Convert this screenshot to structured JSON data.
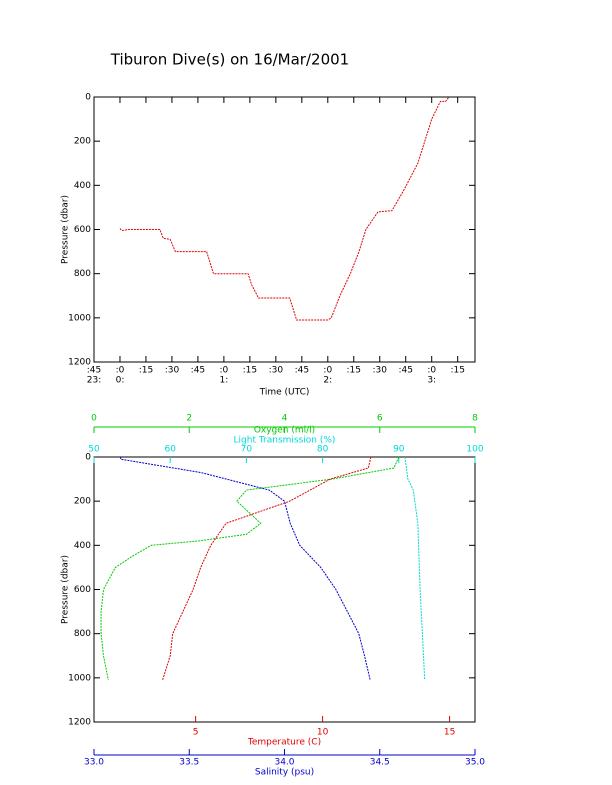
{
  "chart_data": [
    {
      "type": "line",
      "title": "Tiburon Dive(s) on 16/Mar/2001",
      "xlabel": "Time (UTC)",
      "ylabel": "Pressure (dbar)",
      "y_inverted": true,
      "xlim": [
        -15,
        205
      ],
      "ylim": [
        0,
        1200
      ],
      "xticks": [
        {
          "value": -15,
          "label": ":45"
        },
        {
          "value": 0,
          "label": ":0"
        },
        {
          "value": 15,
          "label": ":15"
        },
        {
          "value": 30,
          "label": ":30"
        },
        {
          "value": 45,
          "label": ":45"
        },
        {
          "value": 60,
          "label": ":0"
        },
        {
          "value": 75,
          "label": ":15"
        },
        {
          "value": 90,
          "label": ":30"
        },
        {
          "value": 105,
          "label": ":45"
        },
        {
          "value": 120,
          "label": ":0"
        },
        {
          "value": 135,
          "label": ":15"
        },
        {
          "value": 150,
          "label": ":30"
        },
        {
          "value": 165,
          "label": ":45"
        },
        {
          "value": 180,
          "label": ":0"
        },
        {
          "value": 195,
          "label": ":15"
        }
      ],
      "hour_ticks": [
        {
          "value": -15,
          "label": "23:"
        },
        {
          "value": 0,
          "label": "0:"
        },
        {
          "value": 60,
          "label": "1:"
        },
        {
          "value": 120,
          "label": "2:"
        },
        {
          "value": 180,
          "label": "3:"
        }
      ],
      "yticks": [
        0,
        200,
        400,
        600,
        800,
        1000,
        1200
      ],
      "series": [
        {
          "color": "#e00000",
          "x": [
            0,
            1,
            5,
            23,
            25,
            29,
            32,
            50,
            54,
            74,
            76,
            80,
            98,
            102,
            120,
            122,
            127,
            133,
            138,
            142,
            149,
            157,
            164,
            172,
            176,
            180,
            185,
            188,
            190
          ],
          "y": [
            595,
            605,
            600,
            600,
            640,
            645,
            700,
            700,
            800,
            800,
            850,
            910,
            910,
            1010,
            1010,
            1000,
            900,
            800,
            700,
            600,
            520,
            515,
            420,
            300,
            200,
            100,
            20,
            20,
            0
          ]
        }
      ]
    },
    {
      "type": "profile",
      "ylabel": "Pressure (dbar)",
      "y_inverted": true,
      "ylim": [
        0,
        1200
      ],
      "yticks": [
        0,
        200,
        400,
        600,
        800,
        1000,
        1200
      ],
      "x_axes": [
        {
          "label": "Oxygen (ml/l)",
          "color": "#00cc00",
          "side": "top",
          "xlim": [
            0,
            8
          ],
          "xticks": [
            0,
            2,
            4,
            6,
            8
          ]
        },
        {
          "label": "Light Transmission (%)",
          "color": "#00d8d8",
          "side": "top",
          "xlim": [
            50,
            100
          ],
          "xticks": [
            50,
            60,
            70,
            80,
            90,
            100
          ]
        },
        {
          "label": "Temperature (C)",
          "color": "#e00000",
          "side": "bottom",
          "xlim": [
            1,
            16
          ],
          "xticks": [
            5,
            10,
            15
          ]
        },
        {
          "label": "Salinity (psu)",
          "color": "#0000cc",
          "side": "bottom",
          "xlim": [
            33,
            35
          ],
          "xticks": [
            {
              "value": 33,
              "label": "33.0"
            },
            {
              "value": 33.5,
              "label": "33.5"
            },
            {
              "value": 34,
              "label": "34.0"
            },
            {
              "value": 34.5,
              "label": "34.5"
            },
            {
              "value": 35,
              "label": "35.0"
            }
          ]
        }
      ],
      "series": [
        {
          "axis": 0,
          "color": "#00cc00",
          "x": [
            6.4,
            6.3,
            5.0,
            3.2,
            3.0,
            3.5,
            3.2,
            2.2,
            1.2,
            0.8,
            0.45,
            0.2,
            0.15,
            0.15,
            0.2,
            0.3
          ],
          "y": [
            0,
            50,
            100,
            150,
            200,
            300,
            350,
            380,
            400,
            450,
            500,
            600,
            700,
            800,
            900,
            1010
          ]
        },
        {
          "axis": 1,
          "color": "#00d8d8",
          "x": [
            90.8,
            91.2,
            91.9,
            92.5,
            92.8,
            93.1,
            93.4
          ],
          "y": [
            0,
            100,
            150,
            300,
            600,
            800,
            1010
          ]
        },
        {
          "axis": 2,
          "color": "#e00000",
          "x": [
            11.9,
            11.8,
            10.3,
            8.7,
            6.2,
            5.6,
            5.2,
            4.9,
            4.5,
            4.1,
            4.0,
            3.7
          ],
          "y": [
            0,
            50,
            100,
            200,
            300,
            400,
            500,
            600,
            700,
            800,
            900,
            1010
          ]
        },
        {
          "axis": 3,
          "color": "#0000cc",
          "x": [
            33.14,
            33.14,
            33.56,
            33.92,
            34.0,
            34.03,
            34.08,
            34.19,
            34.27,
            34.33,
            34.39,
            34.42,
            34.45
          ],
          "y": [
            0,
            10,
            70,
            150,
            200,
            300,
            400,
            500,
            600,
            700,
            800,
            900,
            1010
          ]
        }
      ]
    }
  ]
}
